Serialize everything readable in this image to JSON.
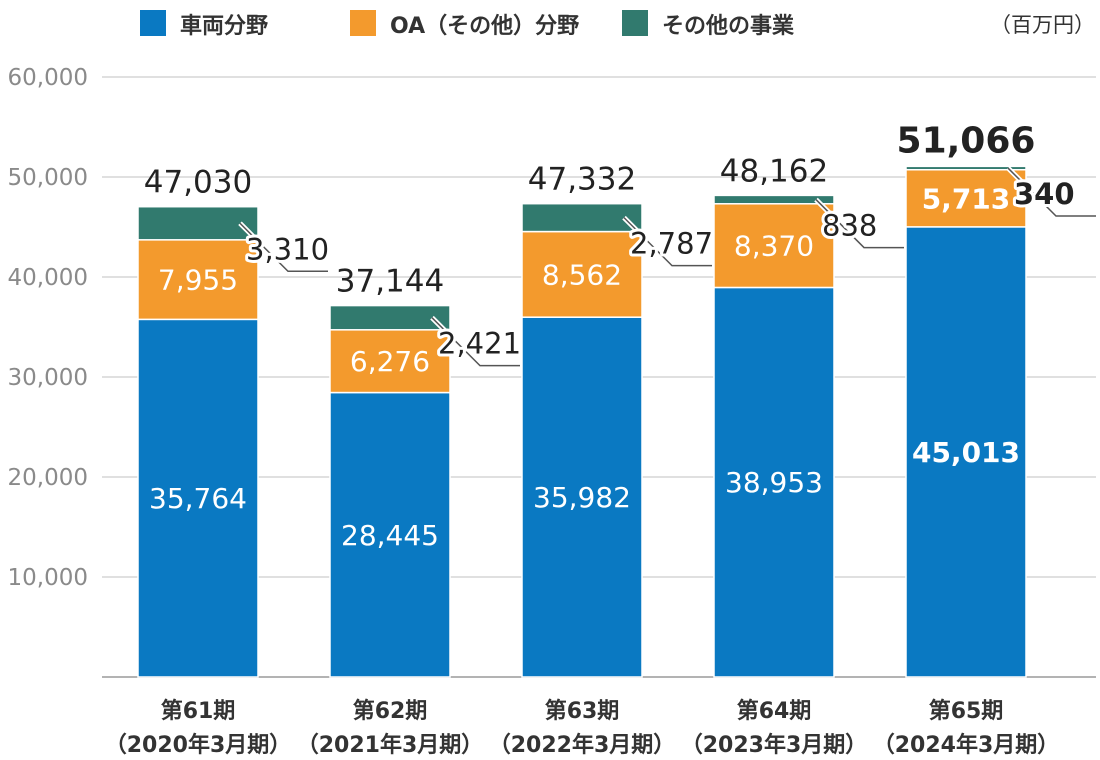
{
  "chart_data": {
    "type": "bar",
    "stacked": true,
    "unit": "（百万円）",
    "categories": [
      {
        "line1": "第61期",
        "line2": "（2020年3月期）"
      },
      {
        "line1": "第62期",
        "line2": "（2021年3月期）"
      },
      {
        "line1": "第63期",
        "line2": "（2022年3月期）"
      },
      {
        "line1": "第64期",
        "line2": "（2023年3月期）"
      },
      {
        "line1": "第65期",
        "line2": "（2024年3月期）"
      }
    ],
    "series": [
      {
        "name": "車両分野",
        "color": "#0a79c2",
        "values": [
          35764,
          28445,
          35982,
          38953,
          45013
        ],
        "labels": [
          "35,764",
          "28,445",
          "35,982",
          "38,953",
          "45,013"
        ]
      },
      {
        "name": "OA（その他）分野",
        "color": "#f39a2d",
        "values": [
          7955,
          6276,
          8562,
          8370,
          5713
        ],
        "labels": [
          "7,955",
          "6,276",
          "8,562",
          "8,370",
          "5,713"
        ]
      },
      {
        "name": "その他の事業",
        "color": "#317a6e",
        "values": [
          3310,
          2421,
          2787,
          838,
          340
        ],
        "labels": [
          "3,310",
          "2,421",
          "2,787",
          "838",
          "340"
        ]
      }
    ],
    "totals": [
      47030,
      37144,
      47332,
      48162,
      51066
    ],
    "total_labels": [
      "47,030",
      "37,144",
      "47,332",
      "48,162",
      "51,066"
    ],
    "highlight_index": 4,
    "ylim": [
      0,
      60000
    ],
    "yticks": [
      10000,
      20000,
      30000,
      40000,
      50000,
      60000
    ],
    "ytick_labels": [
      "10,000",
      "20,000",
      "30,000",
      "40,000",
      "50,000",
      "60,000"
    ],
    "grid": true,
    "legend_position": "top"
  }
}
